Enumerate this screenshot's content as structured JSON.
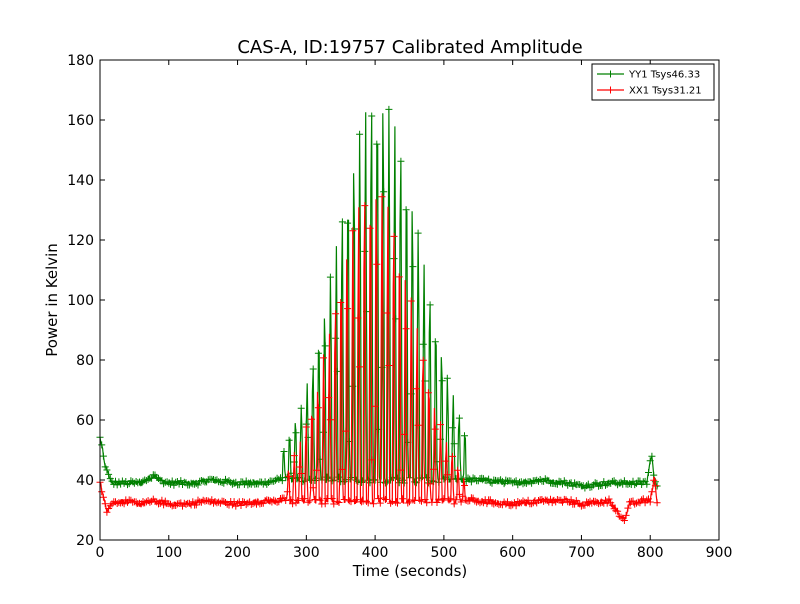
{
  "chart_data": {
    "type": "line",
    "title": "CAS-A, ID:19757 Calibrated Amplitude",
    "xlabel": "Time (seconds)",
    "ylabel": "Power in Kelvin",
    "xlim": [
      0,
      900
    ],
    "ylim": [
      20,
      180
    ],
    "xticks": [
      0,
      100,
      200,
      300,
      400,
      500,
      600,
      700,
      800,
      900
    ],
    "yticks": [
      20,
      40,
      60,
      80,
      100,
      120,
      140,
      160,
      180
    ],
    "grid": false,
    "legend_position": "top-right",
    "series": [
      {
        "name": "YY1 Tsys46.33",
        "color": "#008000",
        "marker": "+",
        "baseline_points": [
          [
            0,
            54
          ],
          [
            3,
            51
          ],
          [
            6,
            46
          ],
          [
            10,
            43
          ],
          [
            15,
            40
          ],
          [
            20,
            39
          ],
          [
            40,
            39
          ],
          [
            60,
            39
          ],
          [
            75,
            41
          ],
          [
            80,
            42
          ],
          [
            85,
            40
          ],
          [
            100,
            39
          ],
          [
            140,
            39
          ],
          [
            160,
            40
          ],
          [
            200,
            39
          ],
          [
            240,
            39
          ],
          [
            260,
            40
          ],
          [
            280,
            41
          ],
          [
            300,
            40
          ],
          [
            350,
            40
          ],
          [
            400,
            41
          ],
          [
            450,
            40
          ],
          [
            500,
            40
          ],
          [
            520,
            40
          ],
          [
            550,
            40
          ],
          [
            600,
            39
          ],
          [
            640,
            40
          ],
          [
            680,
            39
          ],
          [
            700,
            38
          ],
          [
            740,
            39
          ],
          [
            760,
            39
          ],
          [
            780,
            39
          ],
          [
            795,
            39
          ],
          [
            802,
            49
          ],
          [
            806,
            39
          ],
          [
            812,
            38
          ]
        ],
        "oscillation": {
          "x_range": [
            265,
            532
          ],
          "period_s": 8.5,
          "peak_center_s": 405,
          "peak_width_s": 62,
          "peak_max_kelvin": 168,
          "floor_kelvin": 40
        }
      },
      {
        "name": "XX1 Tsys31.21",
        "color": "#ff0000",
        "marker": "+",
        "baseline_points": [
          [
            0,
            40
          ],
          [
            3,
            36
          ],
          [
            6,
            33
          ],
          [
            10,
            30
          ],
          [
            15,
            32
          ],
          [
            30,
            33
          ],
          [
            60,
            32
          ],
          [
            80,
            33
          ],
          [
            100,
            32
          ],
          [
            130,
            32
          ],
          [
            150,
            33
          ],
          [
            200,
            32
          ],
          [
            240,
            33
          ],
          [
            260,
            33
          ],
          [
            280,
            34
          ],
          [
            300,
            33
          ],
          [
            350,
            34
          ],
          [
            400,
            36
          ],
          [
            450,
            34
          ],
          [
            500,
            33
          ],
          [
            520,
            34
          ],
          [
            550,
            33
          ],
          [
            600,
            32
          ],
          [
            640,
            33
          ],
          [
            680,
            33
          ],
          [
            700,
            32
          ],
          [
            740,
            33
          ],
          [
            752,
            30
          ],
          [
            758,
            27
          ],
          [
            764,
            27
          ],
          [
            770,
            32
          ],
          [
            790,
            33
          ],
          [
            800,
            33
          ],
          [
            806,
            41
          ],
          [
            810,
            33
          ],
          [
            812,
            33
          ]
        ],
        "oscillation": {
          "x_range": [
            272,
            532
          ],
          "period_s": 8.5,
          "peak_center_s": 398,
          "peak_width_s": 58,
          "peak_max_kelvin": 138,
          "floor_kelvin": 33
        }
      }
    ]
  }
}
